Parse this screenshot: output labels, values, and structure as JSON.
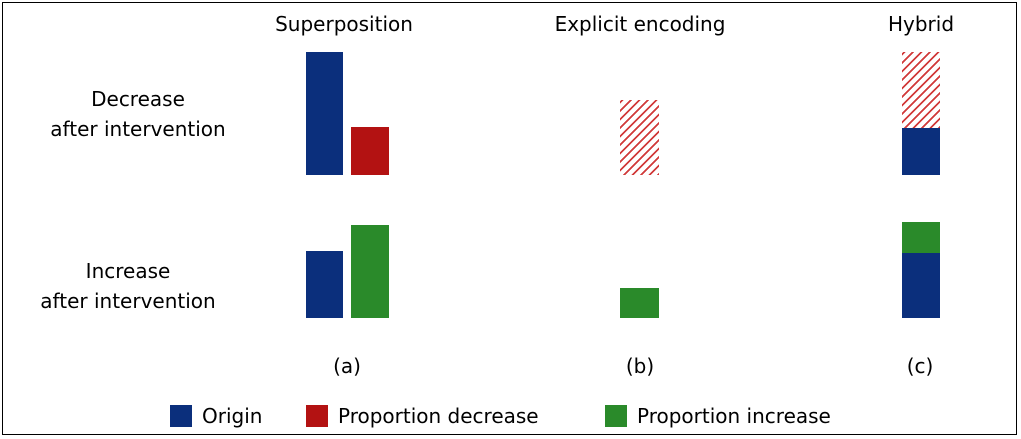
{
  "columns": [
    "Superposition",
    "Explicit encoding",
    "Hybrid"
  ],
  "rows": [
    {
      "line1": "Decrease",
      "line2": "after intervention"
    },
    {
      "line1": "Increase",
      "line2": "after intervention"
    }
  ],
  "panels": [
    "(a)",
    "(b)",
    "(c)"
  ],
  "legend": [
    {
      "label": "Origin",
      "color": "#0b2f7c"
    },
    {
      "label": "Proportion decrease",
      "color": "#b31212"
    },
    {
      "label": "Proportion increase",
      "color": "#2a8a2a"
    }
  ],
  "colors": {
    "origin": "#0b2f7c",
    "decrease": "#b31212",
    "increase": "#2a8a2a",
    "hatch": "#d13a3a"
  }
}
